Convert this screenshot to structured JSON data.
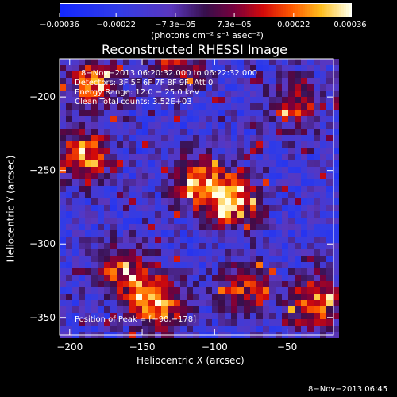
{
  "chart_data": {
    "type": "heatmap",
    "title": "Reconstructed RHESSI Image",
    "xlabel": "Heliocentric X (arcsec)",
    "ylabel": "Heliocentric Y (arcsec)",
    "xlim": [
      -207,
      -18
    ],
    "ylim": [
      -362,
      -174
    ],
    "x_ticks": [
      -200,
      -150,
      -100,
      -50
    ],
    "x_tick_labels": [
      "−200",
      "−150",
      "−100",
      "−50"
    ],
    "y_ticks": [
      -200,
      -250,
      -300,
      -350
    ],
    "y_tick_labels": [
      "−200",
      "−250",
      "−300",
      "−350"
    ],
    "colorbar": {
      "ticks": [
        -0.00036,
        -0.00022,
        -7.3e-05,
        7.3e-05,
        0.00022,
        0.00036
      ],
      "tick_labels": [
        "−0.00036",
        "−0.00022",
        "−7.3e−05",
        "7.3e−05",
        "0.00022",
        "0.00036"
      ],
      "unit_label": "(photons cm⁻² s⁻¹ asec⁻²)",
      "range": [
        -0.00036,
        0.00036
      ]
    },
    "peak": [
      -90,
      -178
    ],
    "bright_regions": [
      {
        "x": -190,
        "y": -240,
        "level": 0.9
      },
      {
        "x": -185,
        "y": -190,
        "level": 0.75
      },
      {
        "x": -88,
        "y": -270,
        "level": 1.0
      },
      {
        "x": -140,
        "y": -340,
        "level": 0.95
      },
      {
        "x": -165,
        "y": -318,
        "level": 0.7
      },
      {
        "x": -112,
        "y": -258,
        "level": 0.75
      },
      {
        "x": -80,
        "y": -330,
        "level": 0.65
      },
      {
        "x": -45,
        "y": -205,
        "level": 0.6
      },
      {
        "x": -30,
        "y": -340,
        "level": 0.85
      },
      {
        "x": -125,
        "y": -180,
        "level": 0.55
      }
    ],
    "annotations": [
      "8−Nov−2013 06:20:32.000 to 06:22:32.000",
      "Detectors: 3F 5F 6F 7F 8F 9F, Att 0",
      "Energy Range: 12.0 − 25.0 keV",
      "Clean     Total counts: 3.52E+03",
      "Position of Peak = [−90,−178]"
    ]
  },
  "timestamp": "8−Nov−2013 06:45"
}
